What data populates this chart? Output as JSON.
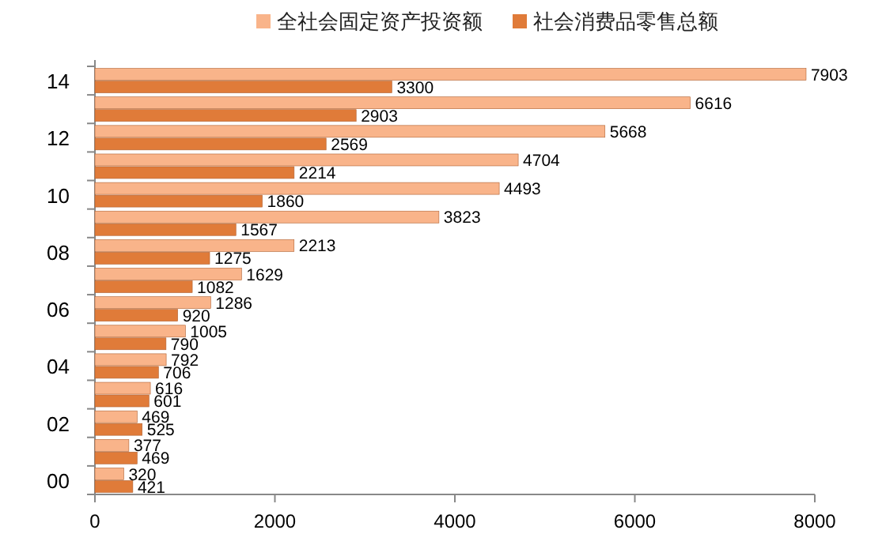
{
  "chart_data": {
    "type": "bar",
    "orientation": "horizontal",
    "categories": [
      "14",
      null,
      "12",
      null,
      "10",
      null,
      "08",
      null,
      "06",
      null,
      "04",
      null,
      "02",
      null,
      "00"
    ],
    "series": [
      {
        "name": "全社会固定资产投资额",
        "color": "#f9b48a",
        "values": [
          7903,
          6616,
          5668,
          4704,
          4493,
          3823,
          2213,
          1629,
          1286,
          1005,
          792,
          616,
          469,
          377,
          320
        ]
      },
      {
        "name": "社会消费品零售总额",
        "color": "#e07b39",
        "values": [
          3300,
          2903,
          2569,
          2214,
          1860,
          1567,
          1275,
          1082,
          920,
          790,
          706,
          601,
          525,
          469,
          421
        ]
      }
    ],
    "xlim": [
      0,
      8000
    ],
    "xticks": [
      0,
      2000,
      4000,
      6000,
      8000
    ],
    "data_labels": true,
    "legend": "top",
    "grid": false
  }
}
